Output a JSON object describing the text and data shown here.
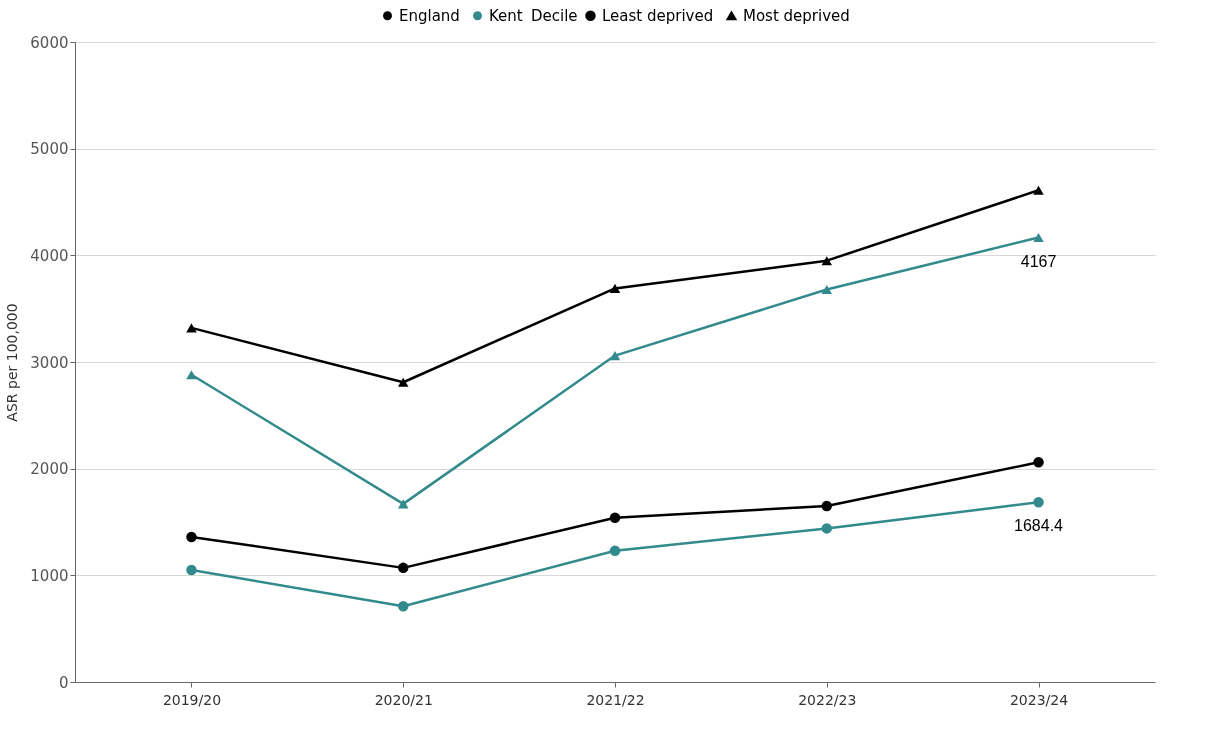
{
  "chart_data": {
    "type": "line",
    "ylabel": "ASR per 100,000",
    "legend_title": "Decile",
    "legend": "top",
    "grid": "y",
    "annotations": [
      "Least deprived",
      "Most deprived"
    ],
    "categories": [
      "2019/20",
      "2020/21",
      "2021/22",
      "2022/23",
      "2023/24"
    ],
    "ylim": [
      0,
      6000
    ],
    "yticks": [
      0,
      1000,
      2000,
      3000,
      4000,
      5000,
      6000
    ],
    "series": [
      {
        "name": "England",
        "marker": "circle",
        "color": "#000000",
        "values": [
          1360,
          1070,
          1540,
          1650,
          2060
        ]
      },
      {
        "name": "Kent",
        "marker": "circle",
        "color": "#328a8c",
        "values": [
          1050,
          710,
          1230,
          1440,
          1684.4
        ],
        "value_labels": [
          null,
          null,
          null,
          null,
          "1684.4"
        ]
      },
      {
        "marker": "triangle",
        "color": "#000000",
        "values": [
          3320,
          2810,
          3690,
          3950,
          4610
        ]
      },
      {
        "marker": "triangle",
        "color": "#328a8c",
        "values": [
          2880,
          1670,
          3060,
          3680,
          4167
        ],
        "value_labels": [
          null,
          null,
          null,
          null,
          "4167"
        ]
      }
    ]
  }
}
